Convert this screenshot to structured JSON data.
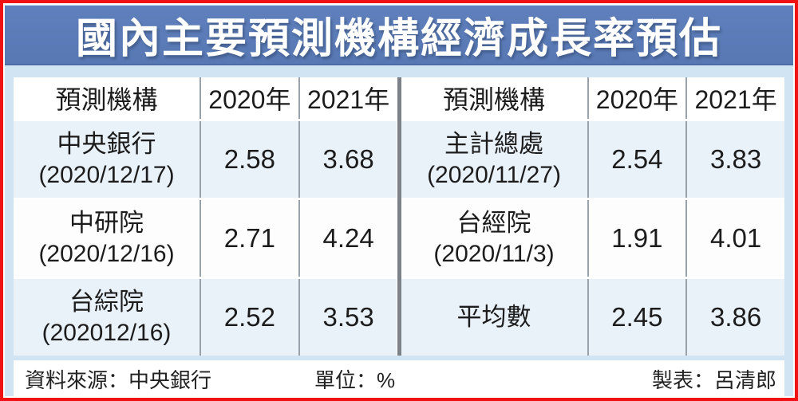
{
  "title": "國內主要預測機構經濟成長率預估",
  "table": {
    "headers": {
      "org": "預測機構",
      "y2020": "2020年",
      "y2021": "2021年"
    },
    "left_rows": [
      {
        "org": "中央銀行",
        "date": "(2020/12/17)",
        "v2020": "2.58",
        "v2021": "3.68"
      },
      {
        "org": "中研院",
        "date": "(2020/12/16)",
        "v2020": "2.71",
        "v2021": "4.24"
      },
      {
        "org": "台綜院",
        "date": "(202012/16)",
        "v2020": "2.52",
        "v2021": "3.53"
      }
    ],
    "right_rows": [
      {
        "org": "主計總處",
        "date": "(2020/11/27)",
        "v2020": "2.54",
        "v2021": "3.83"
      },
      {
        "org": "台經院",
        "date": "(2020/11/3)",
        "v2020": "1.91",
        "v2021": "4.01"
      },
      {
        "org": "平均數",
        "date": "",
        "v2020": "2.45",
        "v2021": "3.86"
      }
    ]
  },
  "footer": {
    "source": "資料來源：中央銀行",
    "unit": "單位：%",
    "credit": "製表：呂清郎"
  },
  "colors": {
    "frame_border": "#f01212",
    "title_bg": "#5878b4",
    "title_text": "#ffffff",
    "page_bg": "#d0e4f3",
    "row_tint": "#e9f1f9",
    "divider": "#7d8288",
    "column_line": "#99a1ab",
    "text": "#1c1c1c"
  },
  "chart_data": {
    "type": "table",
    "title": "國內主要預測機構經濟成長率預估",
    "unit": "%",
    "source": "中央銀行",
    "credit": "呂清郎",
    "columns": [
      "預測機構",
      "2020年",
      "2021年"
    ],
    "rows": [
      {
        "institution": "中央銀行",
        "forecast_date": "2020/12/17",
        "growth_2020": 2.58,
        "growth_2021": 3.68
      },
      {
        "institution": "中研院",
        "forecast_date": "2020/12/16",
        "growth_2020": 2.71,
        "growth_2021": 4.24
      },
      {
        "institution": "台綜院",
        "forecast_date": "202012/16",
        "growth_2020": 2.52,
        "growth_2021": 3.53
      },
      {
        "institution": "主計總處",
        "forecast_date": "2020/11/27",
        "growth_2020": 2.54,
        "growth_2021": 3.83
      },
      {
        "institution": "台經院",
        "forecast_date": "2020/11/3",
        "growth_2020": 1.91,
        "growth_2021": 4.01
      },
      {
        "institution": "平均數",
        "forecast_date": "",
        "growth_2020": 2.45,
        "growth_2021": 3.86
      }
    ]
  }
}
